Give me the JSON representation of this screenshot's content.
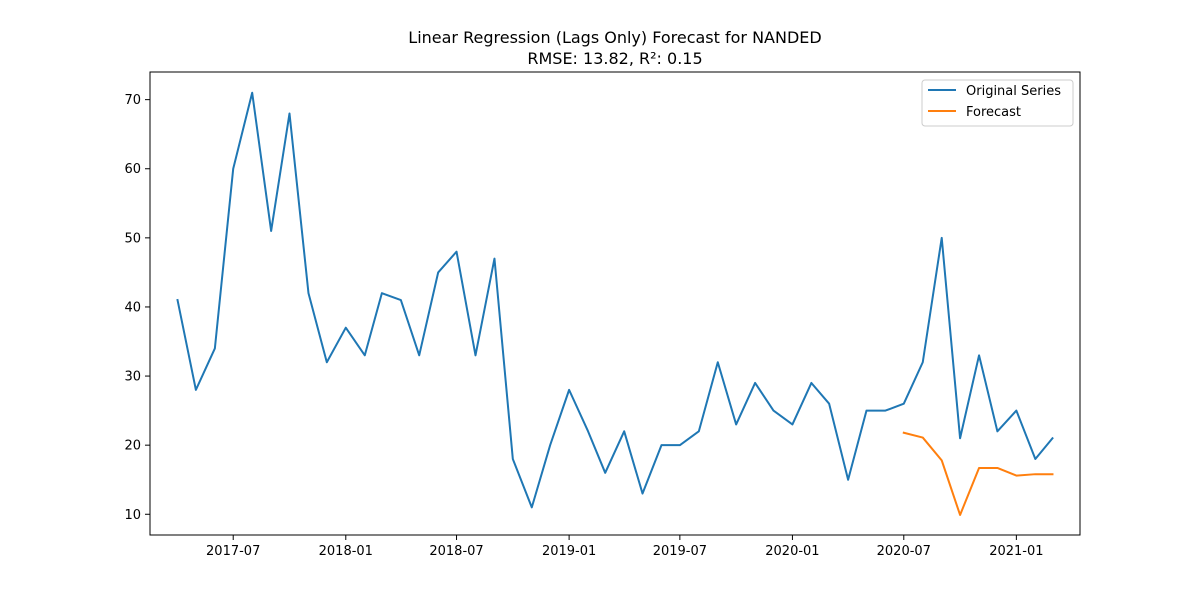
{
  "chart_data": {
    "type": "line",
    "title": "Linear Regression (Lags Only) Forecast for NANDED",
    "subtitle": "RMSE: 13.82, R²: 0.15",
    "xlabel": "",
    "ylabel": "",
    "x_axis": {
      "type": "date",
      "range": [
        "2017-02-15",
        "2021-04-15"
      ],
      "ticks": [
        "2017-07",
        "2018-01",
        "2018-07",
        "2019-01",
        "2019-07",
        "2020-01",
        "2020-07",
        "2021-01"
      ]
    },
    "y_axis": {
      "range": [
        7,
        74
      ],
      "ticks": [
        10,
        20,
        30,
        40,
        50,
        60,
        70
      ]
    },
    "grid": false,
    "legend": {
      "position": "top-right"
    },
    "series": [
      {
        "name": "Original Series",
        "color": "#1f77b4",
        "x": [
          "2017-04",
          "2017-05",
          "2017-06",
          "2017-07",
          "2017-08",
          "2017-09",
          "2017-10",
          "2017-11",
          "2017-12",
          "2018-01",
          "2018-02",
          "2018-03",
          "2018-04",
          "2018-05",
          "2018-06",
          "2018-07",
          "2018-08",
          "2018-09",
          "2018-10",
          "2018-11",
          "2018-12",
          "2019-01",
          "2019-02",
          "2019-03",
          "2019-04",
          "2019-05",
          "2019-06",
          "2019-07",
          "2019-08",
          "2019-09",
          "2019-10",
          "2019-11",
          "2019-12",
          "2020-01",
          "2020-02",
          "2020-03",
          "2020-04",
          "2020-05",
          "2020-06",
          "2020-07",
          "2020-08",
          "2020-09",
          "2020-10",
          "2020-11",
          "2020-12",
          "2021-01",
          "2021-02",
          "2021-03"
        ],
        "values": [
          41,
          28,
          34,
          60,
          71,
          51,
          68,
          42,
          32,
          37,
          33,
          42,
          41,
          33,
          45,
          48,
          33,
          47,
          18,
          11,
          20,
          28,
          22,
          16,
          22,
          13,
          20,
          20,
          22,
          32,
          23,
          29,
          25,
          23,
          29,
          26,
          15,
          25,
          25,
          26,
          32,
          50,
          21,
          33,
          22,
          25,
          18,
          21
        ]
      },
      {
        "name": "Forecast",
        "color": "#ff7f0e",
        "x": [
          "2020-07",
          "2020-08",
          "2020-09",
          "2020-10",
          "2020-11",
          "2020-12",
          "2021-01",
          "2021-02",
          "2021-03"
        ],
        "values": [
          21.8,
          21.1,
          17.8,
          9.9,
          16.7,
          16.7,
          15.6,
          15.8,
          15.8
        ]
      }
    ]
  }
}
